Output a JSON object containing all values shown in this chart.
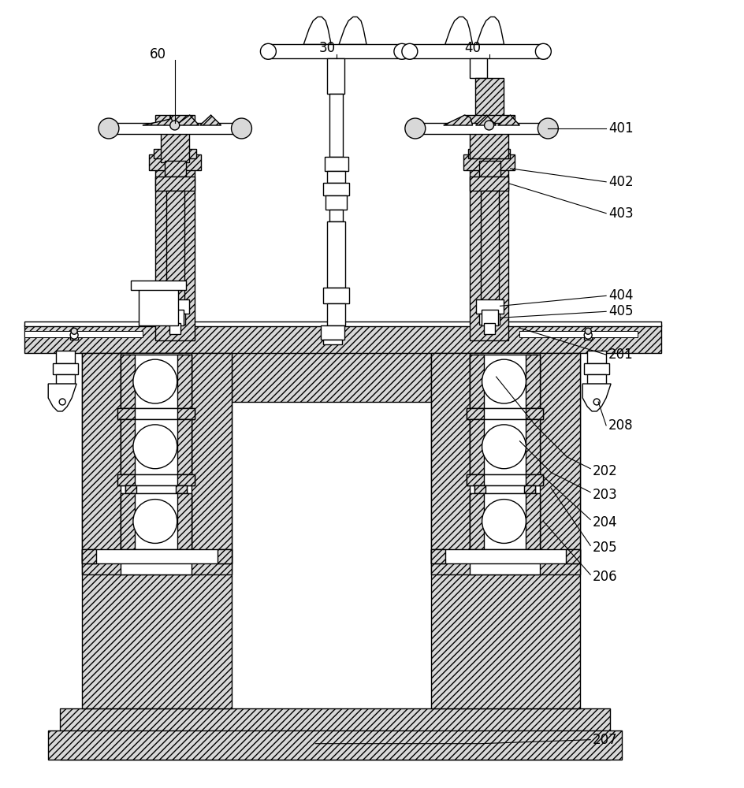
{
  "bg_color": "#ffffff",
  "lc": "#000000",
  "hatch_fc": "#d8d8d8",
  "figsize": [
    9.44,
    10.0
  ],
  "dpi": 100,
  "lw": 1.0,
  "lw2": 0.7
}
